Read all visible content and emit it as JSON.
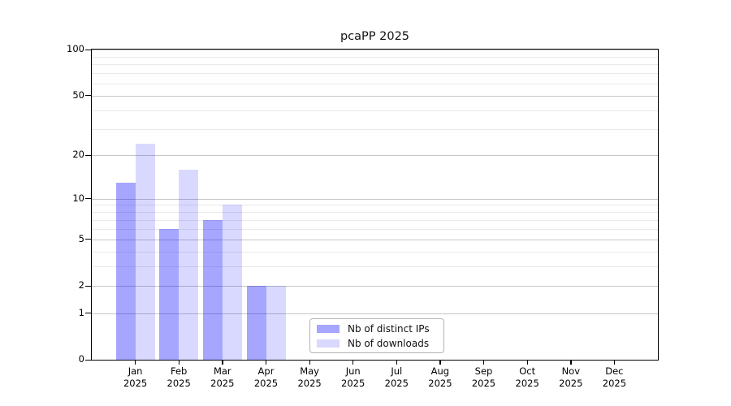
{
  "chart_data": {
    "type": "bar",
    "title": "pcaPP 2025",
    "categories": [
      "Jan",
      "Feb",
      "Mar",
      "Apr",
      "May",
      "Jun",
      "Jul",
      "Aug",
      "Sep",
      "Oct",
      "Nov",
      "Dec"
    ],
    "year_label": "2025",
    "series": [
      {
        "name": "Nb of distinct IPs",
        "color": "rgba(0,0,255,0.35)",
        "values": [
          13,
          6,
          7,
          2,
          0,
          0,
          0,
          0,
          0,
          0,
          0,
          0
        ]
      },
      {
        "name": "Nb of downloads",
        "color": "rgba(0,0,255,0.15)",
        "values": [
          24,
          16,
          9,
          2,
          0,
          0,
          0,
          0,
          0,
          0,
          0,
          0
        ]
      }
    ],
    "y_axis": {
      "scale": "log1p",
      "max": 100,
      "major_ticks": [
        0,
        1,
        2,
        5,
        10,
        20,
        50,
        100
      ],
      "minor_gridlines": [
        3,
        4,
        6,
        7,
        8,
        9,
        30,
        40,
        60,
        70,
        80,
        90
      ]
    },
    "legend_position": "lower center",
    "grid": true
  },
  "colors": {
    "grid_major": "#c6c6c6",
    "grid_minor": "#e9e9e9",
    "spine": "#000000",
    "legend_border": "#b3b3b3"
  }
}
